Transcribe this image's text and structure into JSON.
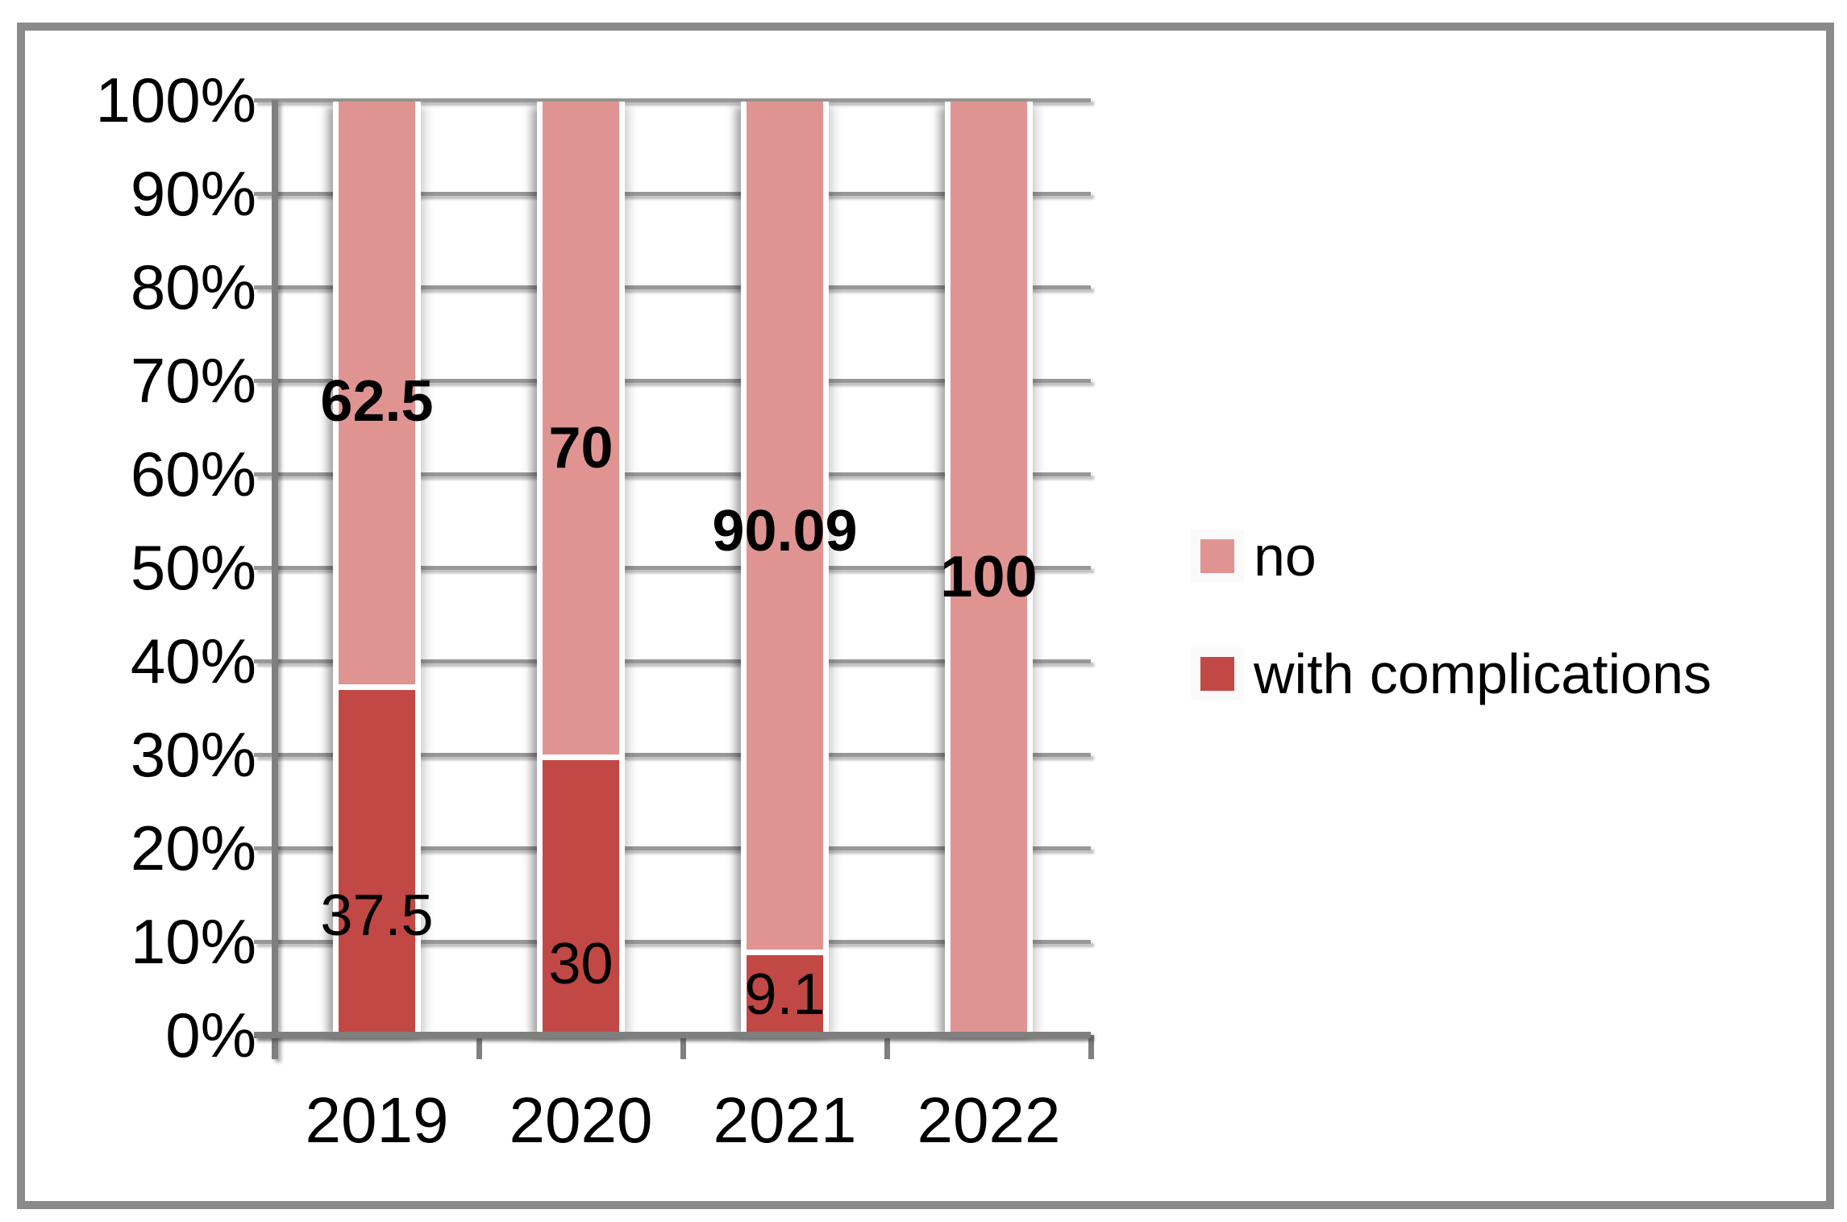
{
  "chart_data": {
    "type": "bar",
    "subtype": "percent-stacked-column",
    "title": "",
    "categories": [
      "2019",
      "2020",
      "2021",
      "2022"
    ],
    "series": [
      {
        "name": "with complications",
        "color": "#c24845",
        "values": [
          37.5,
          30,
          9.1,
          0
        ],
        "data_labels": [
          "37.5",
          "30",
          "9.1",
          ""
        ],
        "labels_bold": false,
        "label_y_pct": [
          12.8,
          7.6,
          4.3,
          null
        ]
      },
      {
        "name": "no",
        "color": "#e09492",
        "values": [
          62.5,
          70,
          90.09,
          100
        ],
        "data_labels": [
          "62.5",
          "70",
          "90.09",
          "100"
        ],
        "labels_bold": true,
        "label_y_pct": [
          67.8,
          62.8,
          53.9,
          49.0
        ]
      }
    ],
    "y_axis": {
      "min": 0,
      "max": 100,
      "step": 10,
      "tick_labels": [
        "0%",
        "10%",
        "20%",
        "30%",
        "40%",
        "50%",
        "60%",
        "70%",
        "80%",
        "90%",
        "100%"
      ]
    },
    "x_axis": {
      "tick_labels": [
        "2019",
        "2020",
        "2021",
        "2022"
      ]
    },
    "legend": {
      "position": "right",
      "entries": [
        "no",
        "with complications"
      ]
    },
    "grid": true,
    "colors": {
      "gridline": "#989898",
      "axis": "#7f7f7f",
      "frame_border": "#8a8a8a",
      "text": "#000000",
      "background": "#ffffff",
      "separator": "#ffffff"
    }
  }
}
